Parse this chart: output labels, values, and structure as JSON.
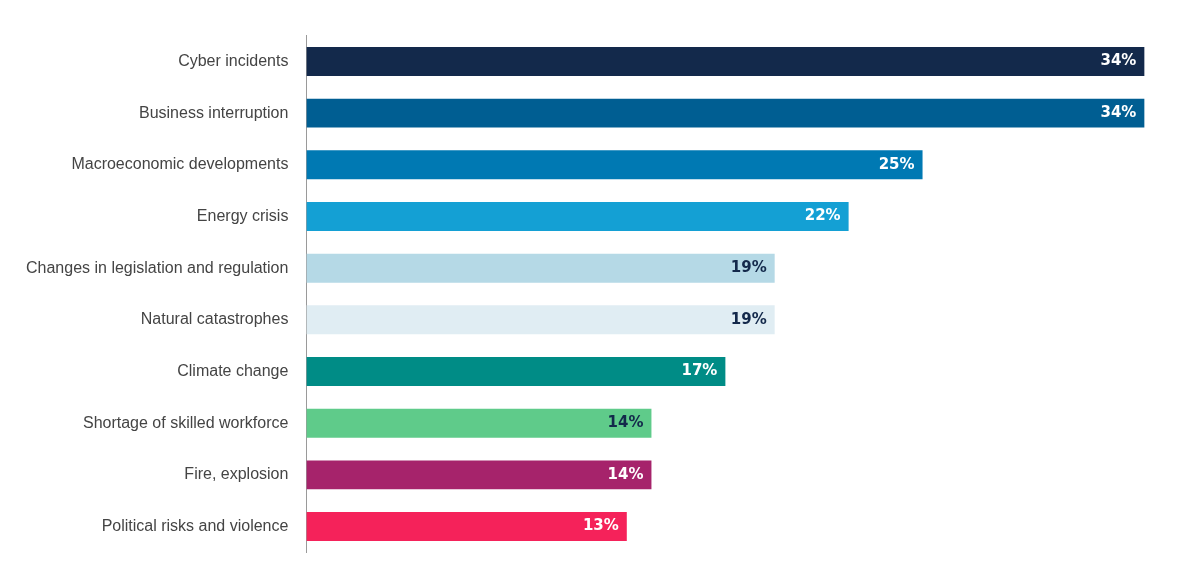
{
  "chart_data": {
    "type": "bar",
    "orientation": "horizontal",
    "categories": [
      "Cyber incidents",
      "Business interruption",
      "Macroeconomic developments",
      "Energy crisis",
      "Changes in legislation and regulation",
      "Natural catastrophes",
      "Climate change",
      "Shortage of skilled workforce",
      "Fire, explosion",
      "Political risks and violence"
    ],
    "values": [
      34,
      34,
      25,
      22,
      19,
      19,
      17,
      14,
      14,
      13
    ],
    "value_labels": [
      "34%",
      "34%",
      "25%",
      "22%",
      "19%",
      "19%",
      "17%",
      "14%",
      "14%",
      "13%"
    ],
    "colors": [
      "#13294b",
      "#005e92",
      "#0079b3",
      "#14a0d4",
      "#b5d9e6",
      "#e0edf3",
      "#008c86",
      "#5fcb8a",
      "#a6236b",
      "#f5225a"
    ],
    "legend": false
  }
}
